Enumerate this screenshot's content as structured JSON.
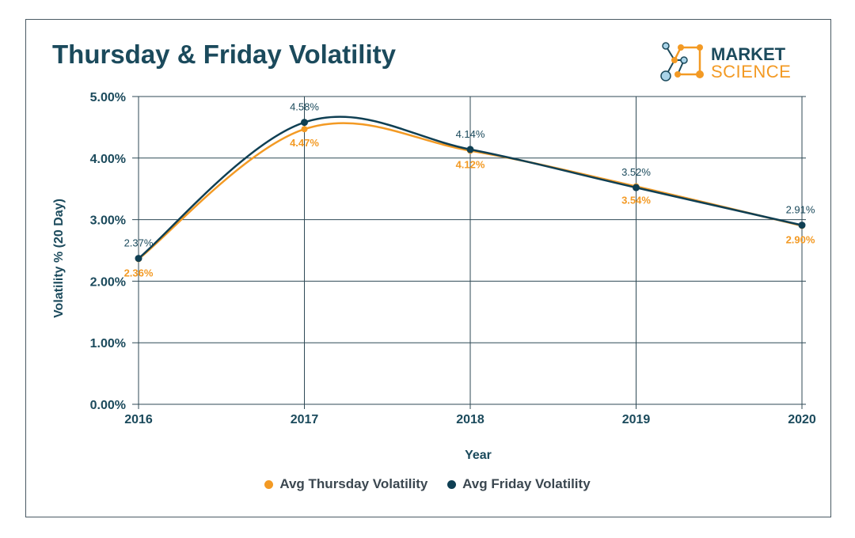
{
  "chart_data": {
    "type": "line",
    "title": "Thursday & Friday Volatility",
    "xlabel": "Year",
    "ylabel": "Volatility % (20 Day)",
    "categories": [
      "2016",
      "2017",
      "2018",
      "2019",
      "2020"
    ],
    "y_ticks": [
      "0.00%",
      "1.00%",
      "2.00%",
      "3.00%",
      "4.00%",
      "5.00%"
    ],
    "ylim": [
      0,
      5
    ],
    "series": [
      {
        "name": "Avg Thursday Volatility",
        "color": "#f39a24",
        "values": [
          2.36,
          4.47,
          4.12,
          3.54,
          2.9
        ],
        "labels": [
          "2.36%",
          "4.47%",
          "4.12%",
          "3.54%",
          "2.90%"
        ]
      },
      {
        "name": "Avg Friday Volatility",
        "color": "#0f3f53",
        "values": [
          2.37,
          4.58,
          4.14,
          3.52,
          2.91
        ],
        "labels": [
          "2.37%",
          "4.58%",
          "4.14%",
          "3.52%",
          "2.91%"
        ]
      }
    ],
    "grid": true,
    "legend": "bottom-center"
  },
  "logo": {
    "line1": "MARKET",
    "line2": "SCIENCE",
    "icon": "molecule-logo-icon"
  }
}
